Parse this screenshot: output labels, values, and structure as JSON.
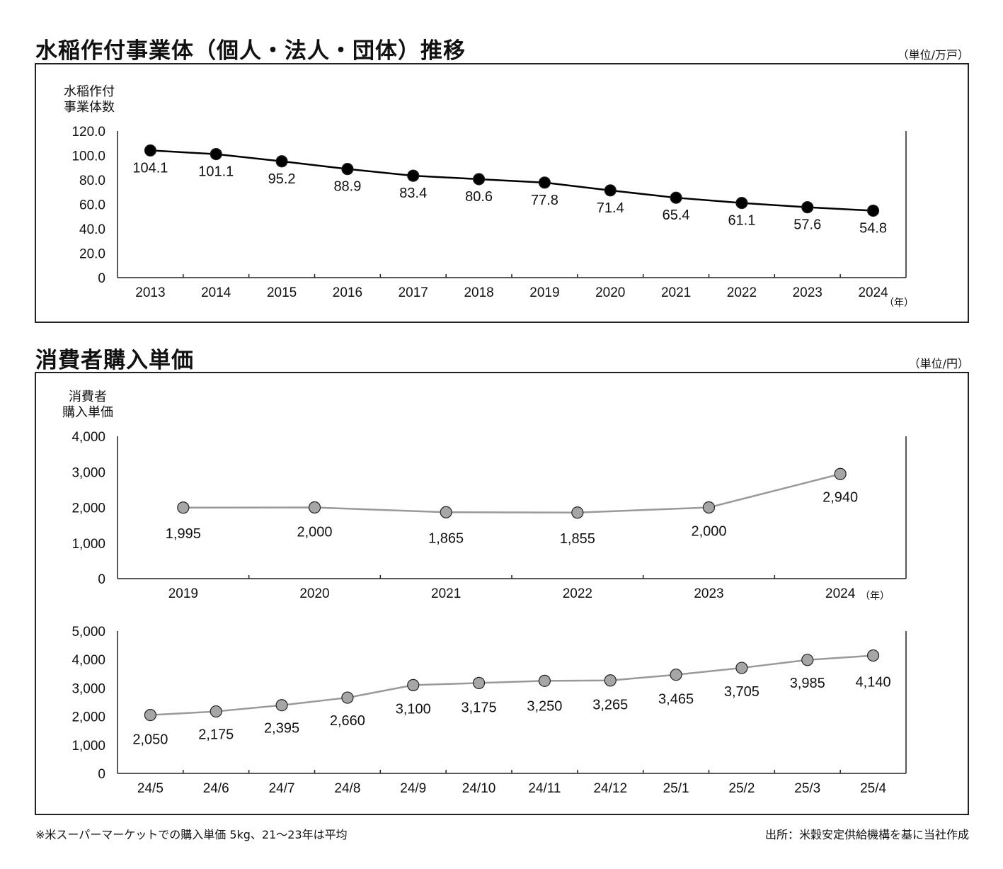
{
  "section1": {
    "title": "水稲作付事業体（個人・法人・団体）推移",
    "unit": "（単位/万戸）"
  },
  "section2": {
    "title": "消費者購入単価",
    "unit": "（単位/円）"
  },
  "footnote": "※米スーパーマーケットでの購入単価 5kg、21～23年は平均",
  "source": "出所：米穀安定供給機構を基に当社作成",
  "chart_data": [
    {
      "type": "line",
      "ylabel": [
        "水稲作付",
        "事業体数"
      ],
      "xunit": "（年）",
      "ylim": [
        0,
        120
      ],
      "yticks": [
        "0",
        "20.0",
        "40.0",
        "60.0",
        "80.0",
        "100.0",
        "120.0"
      ],
      "ytick_values": [
        0,
        20,
        40,
        60,
        80,
        100,
        120
      ],
      "categories": [
        "2013",
        "2014",
        "2015",
        "2016",
        "2017",
        "2018",
        "2019",
        "2020",
        "2021",
        "2022",
        "2023",
        "2024"
      ],
      "values": [
        104.1,
        101.1,
        95.2,
        88.9,
        83.4,
        80.6,
        77.8,
        71.4,
        65.4,
        61.1,
        57.6,
        54.8
      ],
      "labels": [
        "104.1",
        "101.1",
        "95.2",
        "88.9",
        "83.4",
        "80.6",
        "77.8",
        "71.4",
        "65.4",
        "61.1",
        "57.6",
        "54.8"
      ],
      "line_color": "#000000",
      "marker_color": "#000000"
    },
    {
      "type": "line",
      "ylabel": [
        "消費者",
        "購入単価"
      ],
      "xunit": "（年）",
      "ylim": [
        0,
        4000
      ],
      "yticks": [
        "0",
        "1,000",
        "2,000",
        "3,000",
        "4,000"
      ],
      "ytick_values": [
        0,
        1000,
        2000,
        3000,
        4000
      ],
      "categories": [
        "2019",
        "2020",
        "2021",
        "2022",
        "2023",
        "2024"
      ],
      "values": [
        1995,
        2000,
        1865,
        1855,
        2000,
        2940
      ],
      "labels": [
        "1,995",
        "2,000",
        "1,865",
        "1,855",
        "2,000",
        "2,940"
      ],
      "line_color": "#999999",
      "marker_color": "#a6a6a6"
    },
    {
      "type": "line",
      "ylim": [
        0,
        5000
      ],
      "yticks": [
        "0",
        "1,000",
        "2,000",
        "3,000",
        "4,000",
        "5,000"
      ],
      "ytick_values": [
        0,
        1000,
        2000,
        3000,
        4000,
        5000
      ],
      "categories": [
        "24/5",
        "24/6",
        "24/7",
        "24/8",
        "24/9",
        "24/10",
        "24/11",
        "24/12",
        "25/1",
        "25/2",
        "25/3",
        "25/4"
      ],
      "values": [
        2050,
        2175,
        2395,
        2660,
        3100,
        3175,
        3250,
        3265,
        3465,
        3705,
        3985,
        4140
      ],
      "labels": [
        "2,050",
        "2,175",
        "2,395",
        "2,660",
        "3,100",
        "3,175",
        "3,250",
        "3,265",
        "3,465",
        "3,705",
        "3,985",
        "4,140"
      ],
      "line_color": "#999999",
      "marker_color": "#a6a6a6"
    }
  ]
}
